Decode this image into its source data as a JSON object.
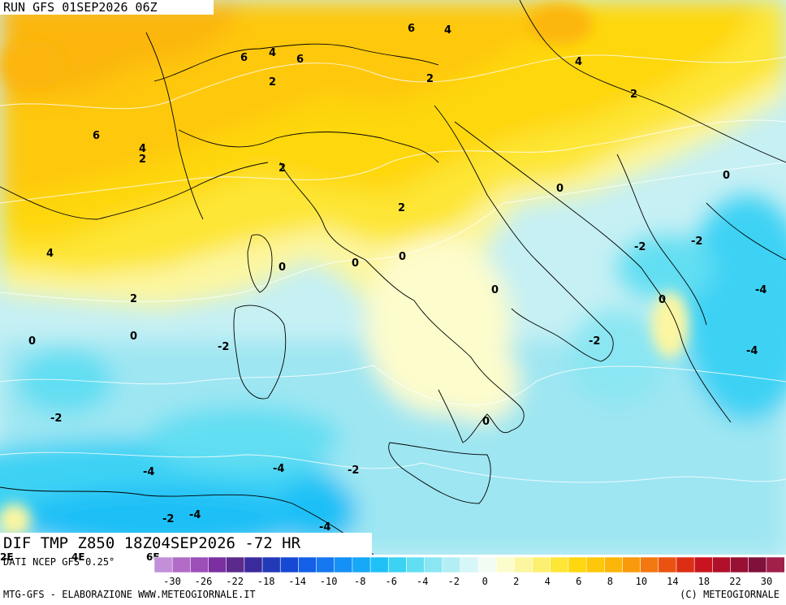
{
  "header": {
    "run": "RUN GFS 01SEP2026 06Z"
  },
  "map": {
    "title": "DIF TMP Z850 18Z04SEP2026 -72 HR",
    "contour_labels": [
      "6",
      "4",
      "4",
      "6",
      "4",
      "6",
      "2",
      "2",
      "4",
      "2",
      "6",
      "4",
      "2",
      "2",
      "0",
      "2",
      "0",
      "0",
      "-2",
      "-2",
      "4",
      "0",
      "0",
      "0",
      "2",
      "0",
      "0",
      "-4",
      "0",
      "-2",
      "-2",
      "0",
      "-2",
      "-4",
      "-2",
      "0",
      "-4",
      "-4",
      "-2",
      "-2",
      "-4",
      "-4"
    ]
  },
  "legend": {
    "colors": [
      "#c28fd8",
      "#b26cc8",
      "#9c4fb8",
      "#7b2fa0",
      "#5b2a8c",
      "#3a2a9c",
      "#2239b8",
      "#1648d4",
      "#1460e8",
      "#1578f0",
      "#1590f6",
      "#17a8f8",
      "#1fc0f6",
      "#3cd2f4",
      "#62def2",
      "#8ae6f2",
      "#b2eef4",
      "#d6f6f8",
      "#f2fcf2",
      "#fdfccc",
      "#fcf6a0",
      "#fdf070",
      "#fde636",
      "#fed70e",
      "#fec80a",
      "#fcb60a",
      "#f99a0c",
      "#f37810",
      "#ea5212",
      "#dc2e14",
      "#c81420",
      "#b0102a",
      "#981034",
      "#80103c",
      "#a0204a"
    ],
    "tick_labels": [
      "-30",
      "-26",
      "-22",
      "-18",
      "-14",
      "-10",
      "-8",
      "-6",
      "-4",
      "-2",
      "0",
      "2",
      "4",
      "6",
      "8",
      "10",
      "14",
      "18",
      "22",
      "30"
    ]
  },
  "footer": {
    "source": "DATI NCEP GFS 0.25°",
    "lon_ticks": [
      "2E",
      "4E",
      "6E"
    ],
    "credit_left": "MTG-GFS - ELABORAZIONE WWW.METEOGIORNALE.IT",
    "credit_right": "(C) METEOGIORNALE"
  }
}
